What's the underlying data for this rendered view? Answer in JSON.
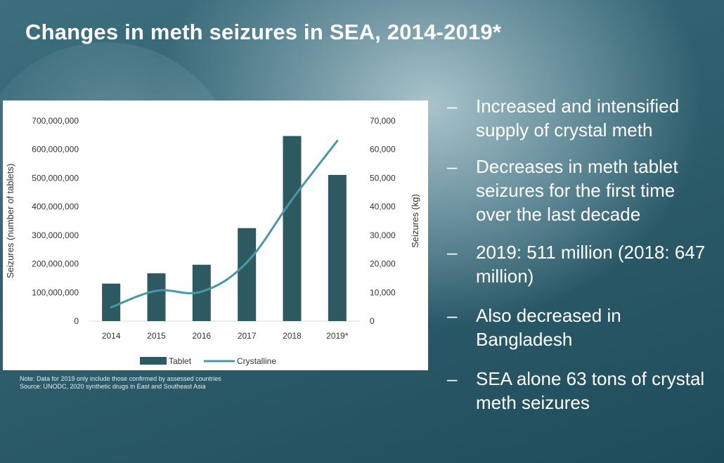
{
  "slide": {
    "title": "Changes in meth seizures in SEA, 2014-2019*",
    "bullets": [
      "Increased and intensified supply of crystal meth",
      "Decreases in meth tablet seizures for the first time over the last decade",
      "2019: 511 million (2018: 647 million)",
      "Also decreased in Bangladesh",
      "SEA alone 63 tons of crystal meth seizures"
    ],
    "bullet_dash": "–",
    "note": "Note: Data for 2019 only include those confirmed by assessed countries",
    "source": "Source: UNODC, 2020 synthetic drugs in East and Southeast Asia"
  },
  "colors": {
    "bar": "#2d5a60",
    "line": "#4a97a6",
    "axis_text": "#333333",
    "grid": "#d9d9d9"
  },
  "chart_data": {
    "type": "bar",
    "categories": [
      "2014",
      "2015",
      "2016",
      "2017",
      "2018",
      "2019*"
    ],
    "series": [
      {
        "name": "Tablet",
        "type": "bar",
        "axis": "left",
        "values": [
          131000000,
          167000000,
          197000000,
          325000000,
          647000000,
          511000000
        ]
      },
      {
        "name": "Crystalline",
        "type": "line",
        "axis": "right",
        "values": [
          4800,
          10600,
          10300,
          20500,
          42500,
          63000
        ]
      }
    ],
    "title": "",
    "ylabel": "Seizures (number of tablets)",
    "y2label": "Seizures (kg)",
    "ylim": [
      0,
      700000000
    ],
    "y2lim": [
      0,
      70000
    ],
    "yticks": [
      "0",
      "100,000,000",
      "200,000,000",
      "300,000,000",
      "400,000,000",
      "500,000,000",
      "600,000,000",
      "700,000,000"
    ],
    "y2ticks": [
      "0",
      "10,000",
      "20,000",
      "30,000",
      "40,000",
      "50,000",
      "60,000",
      "70,000"
    ],
    "grid": false,
    "legend": "bottom"
  }
}
